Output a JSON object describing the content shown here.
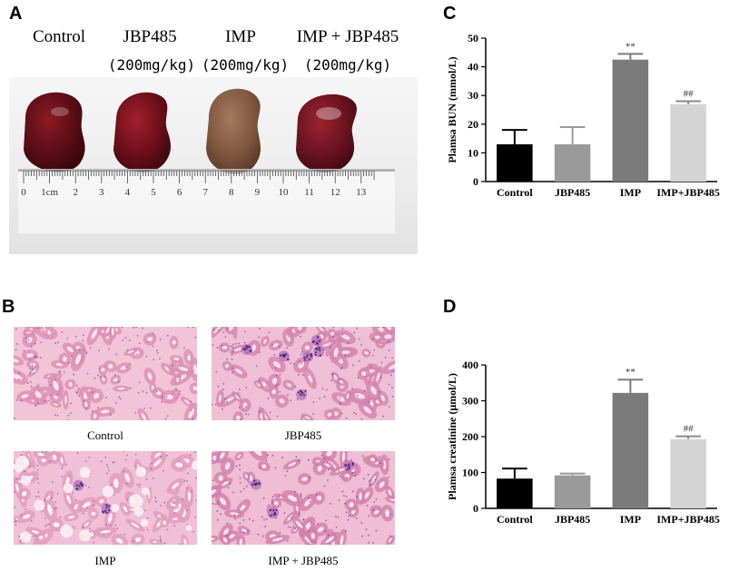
{
  "panels": {
    "a": "A",
    "b": "B",
    "c": "C",
    "d": "D"
  },
  "panel_a": {
    "groups": [
      {
        "name": "Control",
        "dose": ""
      },
      {
        "name": "JBP485",
        "dose": "(200mg/kg)"
      },
      {
        "name": "IMP",
        "dose": "(200mg/kg)"
      },
      {
        "name": "IMP + JBP485",
        "dose": "(200mg/kg)"
      }
    ],
    "ruler_numbers": [
      "0",
      "1cm",
      "2",
      "3",
      "4",
      "5",
      "6",
      "7",
      "8",
      "9",
      "10",
      "11",
      "12",
      "13"
    ]
  },
  "panel_b": {
    "captions": [
      "Control",
      "JBP485",
      "IMP",
      "IMP + JBP485"
    ]
  },
  "colors": {
    "control": "#000000",
    "jbp485": "#9a9a9a",
    "imp": "#7b7b7b",
    "imp_jbp485": "#d4d4d4"
  },
  "chart_data": [
    {
      "type": "bar",
      "panel": "C",
      "categories": [
        "Control",
        "JBP485",
        "IMP",
        "IMP+JBP485"
      ],
      "values": [
        13,
        13,
        42.5,
        27
      ],
      "errors": [
        5,
        6,
        2,
        1
      ],
      "annotations": [
        "",
        "",
        "**",
        "##"
      ],
      "ylabel": "Plamsa BUN (mmol/L)",
      "ylim": [
        0,
        50
      ],
      "yticks": [
        0,
        10,
        20,
        30,
        40,
        50
      ]
    },
    {
      "type": "bar",
      "panel": "D",
      "categories": [
        "Control",
        "JBP485",
        "IMP",
        "IMP+JBP485"
      ],
      "values": [
        83,
        92,
        322,
        193
      ],
      "errors": [
        28,
        5,
        37,
        8
      ],
      "annotations": [
        "",
        "",
        "**",
        "##"
      ],
      "ylabel": "Plamsa creatinine (μmol/L)",
      "ylim": [
        0,
        400
      ],
      "yticks": [
        0,
        100,
        200,
        300,
        400
      ]
    }
  ]
}
